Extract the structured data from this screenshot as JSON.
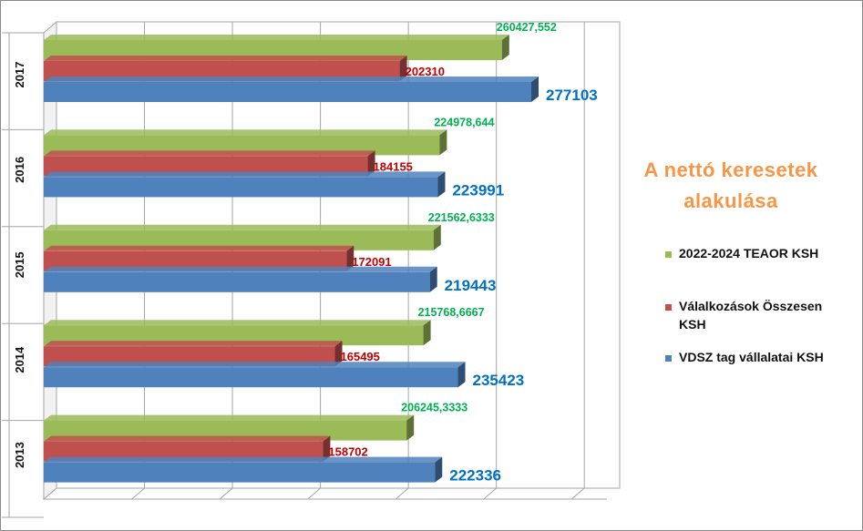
{
  "chart_data": {
    "type": "bar",
    "orientation": "horizontal",
    "title_lines": [
      "A nettó keresetek",
      "alakulása"
    ],
    "categories": [
      "2017",
      "2016",
      "2015",
      "2014",
      "2013"
    ],
    "series": [
      {
        "name": "2022-2024 TEAOR KSH",
        "color": "#9bbb59",
        "label_color": "#00b050",
        "labels": [
          "260427,552",
          "224978,644",
          "221562,6333",
          "215768,6667",
          "206245,3333"
        ],
        "values": [
          260427.552,
          224978.644,
          221562.6333,
          215768.6667,
          206245.3333
        ]
      },
      {
        "name": "Válalkozások Összesen KSH",
        "color": "#c0504d",
        "label_color": "#c00000",
        "labels": [
          "202310",
          "184155",
          "172091",
          "165495",
          "158702"
        ],
        "values": [
          202310,
          184155,
          172091,
          165495,
          158702
        ]
      },
      {
        "name": "VDSZ tag vállalatai KSH",
        "color": "#4f81bd",
        "label_color": "#0070c0",
        "labels": [
          "277103",
          "223991",
          "219443",
          "235423",
          "222336"
        ],
        "values": [
          277103,
          223991,
          219443,
          235423,
          222336
        ]
      }
    ],
    "xlim": [
      0,
      300000
    ],
    "grid": true,
    "legend_position": "right"
  }
}
